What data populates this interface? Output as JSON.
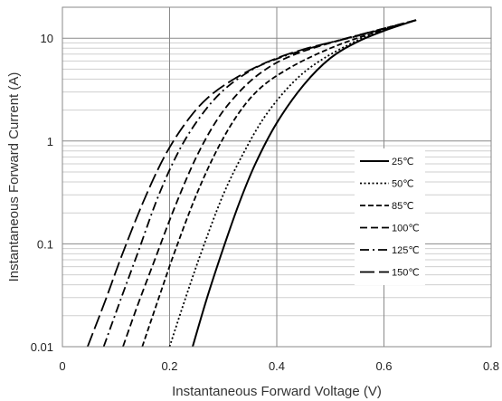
{
  "chart_data": {
    "type": "line",
    "xlabel": "Instantaneous Forward Voltage (V)",
    "ylabel": "Instantaneous Forward Current (A)",
    "xlim": [
      0,
      0.8
    ],
    "ylim": [
      0.01,
      20
    ],
    "y_scale": "log",
    "grid": true,
    "legend_position": "right",
    "x_ticks": [
      {
        "value": 0,
        "label": "0"
      },
      {
        "value": 0.2,
        "label": "0.2"
      },
      {
        "value": 0.4,
        "label": "0.4"
      },
      {
        "value": 0.6,
        "label": "0.6"
      },
      {
        "value": 0.8,
        "label": "0.8"
      }
    ],
    "y_ticks": [
      {
        "value": 0.01,
        "label": "0.01"
      },
      {
        "value": 0.1,
        "label": "0.1"
      },
      {
        "value": 1,
        "label": "1"
      },
      {
        "value": 10,
        "label": "10"
      }
    ],
    "series": [
      {
        "name": "25℃",
        "dash": "solid",
        "x": [
          0.243,
          0.27,
          0.3,
          0.33,
          0.36,
          0.4,
          0.45,
          0.5,
          0.55,
          0.6,
          0.66
        ],
        "y": [
          0.01,
          0.03,
          0.09,
          0.25,
          0.6,
          1.5,
          3.5,
          6.4,
          9.2,
          11.8,
          15
        ]
      },
      {
        "name": "50℃",
        "dash": "dot",
        "x": [
          0.2,
          0.23,
          0.26,
          0.3,
          0.34,
          0.38,
          0.43,
          0.48,
          0.55,
          0.6,
          0.66
        ],
        "y": [
          0.01,
          0.03,
          0.085,
          0.3,
          0.8,
          1.8,
          3.7,
          6.0,
          9.5,
          12.0,
          15
        ]
      },
      {
        "name": "85℃",
        "dash": "short-dash",
        "x": [
          0.149,
          0.18,
          0.21,
          0.25,
          0.29,
          0.33,
          0.37,
          0.42,
          0.48,
          0.55,
          0.66
        ],
        "y": [
          0.01,
          0.03,
          0.085,
          0.3,
          0.85,
          1.9,
          3.3,
          5.0,
          7.2,
          10.0,
          15
        ]
      },
      {
        "name": "100℃",
        "dash": "dash",
        "x": [
          0.113,
          0.14,
          0.17,
          0.21,
          0.25,
          0.29,
          0.33,
          0.37,
          0.42,
          0.5,
          0.66
        ],
        "y": [
          0.01,
          0.025,
          0.065,
          0.23,
          0.7,
          1.65,
          3.0,
          4.6,
          6.5,
          9.0,
          15
        ]
      },
      {
        "name": "125℃",
        "dash": "dash-dot",
        "x": [
          0.077,
          0.11,
          0.14,
          0.18,
          0.22,
          0.26,
          0.3,
          0.35,
          0.4,
          0.48,
          0.66
        ],
        "y": [
          0.01,
          0.03,
          0.08,
          0.3,
          0.85,
          1.8,
          3.1,
          4.8,
          6.3,
          8.5,
          15
        ]
      },
      {
        "name": "150℃",
        "dash": "long-dash",
        "x": [
          0.047,
          0.08,
          0.11,
          0.15,
          0.19,
          0.23,
          0.27,
          0.32,
          0.38,
          0.45,
          0.55,
          0.66
        ],
        "y": [
          0.01,
          0.028,
          0.075,
          0.25,
          0.7,
          1.5,
          2.6,
          4.0,
          5.8,
          7.8,
          10.5,
          15
        ]
      }
    ]
  }
}
